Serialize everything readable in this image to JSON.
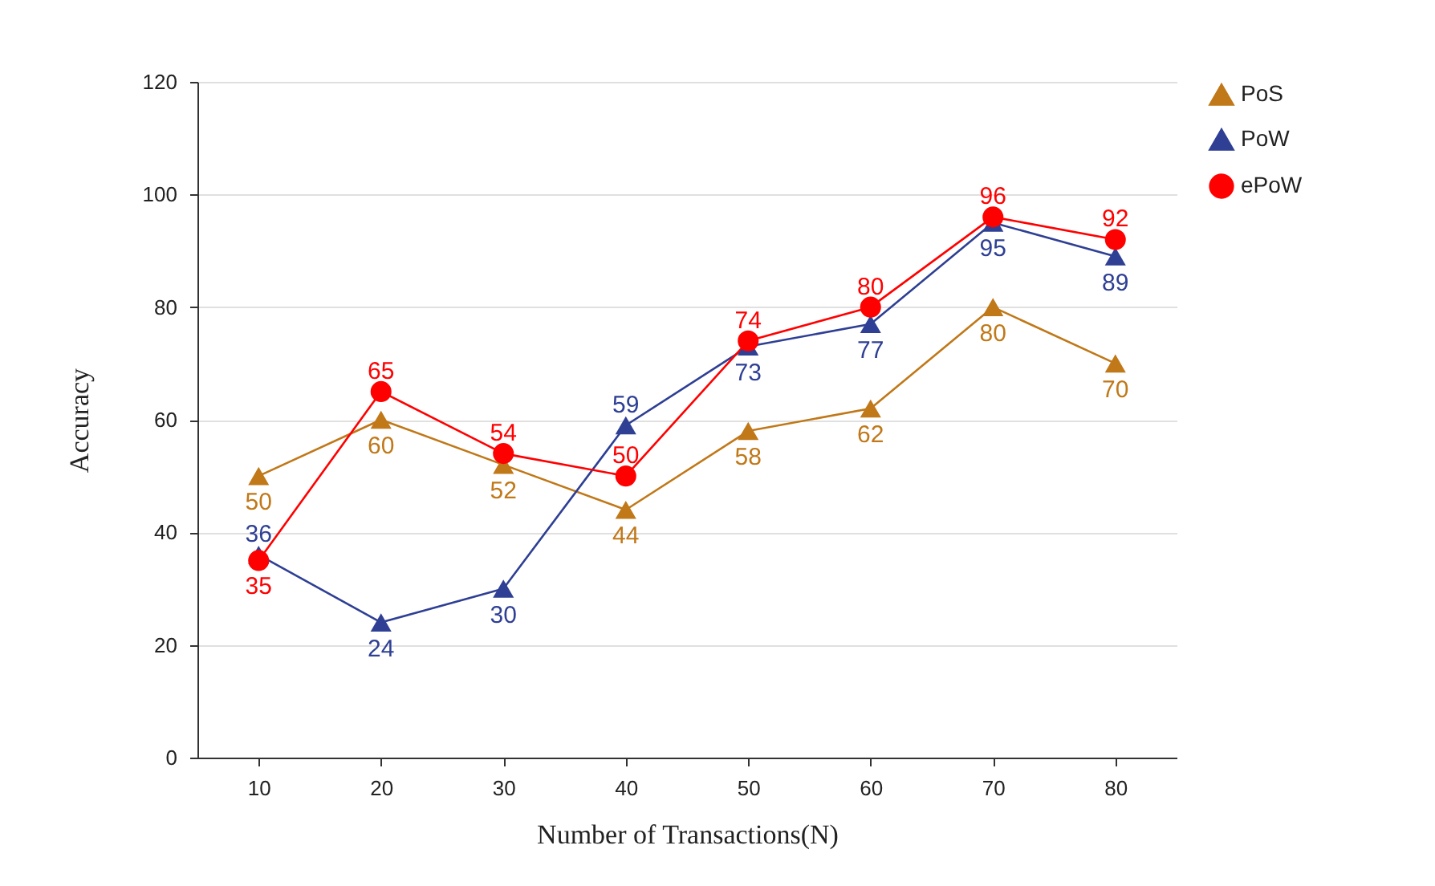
{
  "chart_data": {
    "type": "line",
    "xlabel": "Number of Transactions(N)",
    "ylabel": "Accuracy",
    "categories": [
      "10",
      "20",
      "30",
      "40",
      "50",
      "60",
      "70",
      "80"
    ],
    "series": [
      {
        "name": "PoS",
        "color": "#c07818",
        "marker": "triangle",
        "values": [
          50,
          60,
          52,
          44,
          58,
          62,
          80,
          70
        ]
      },
      {
        "name": "PoW",
        "color": "#2e3f94",
        "marker": "triangle",
        "values": [
          36,
          24,
          30,
          59,
          73,
          77,
          95,
          89
        ]
      },
      {
        "name": "ePoW",
        "color": "#ff0000",
        "marker": "circle",
        "values": [
          35,
          65,
          54,
          50,
          74,
          80,
          96,
          92
        ]
      }
    ],
    "ylim": [
      0,
      120
    ],
    "yticks": [
      0,
      20,
      40,
      60,
      80,
      100,
      120
    ],
    "grid": "y",
    "legend": "top right",
    "data_labels": true
  }
}
